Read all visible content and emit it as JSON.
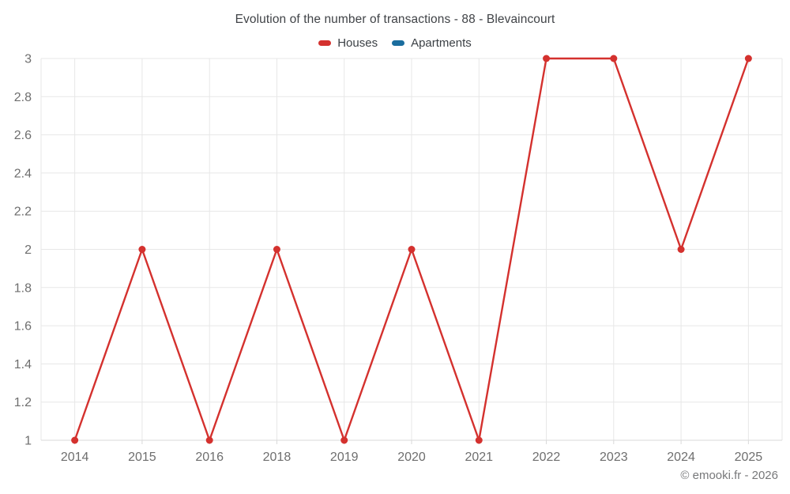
{
  "title": "Evolution of the number of transactions - 88 - Blevaincourt",
  "footer": "© emooki.fr - 2026",
  "chart_data": {
    "type": "line",
    "title": "Evolution of the number of transactions - 88 - Blevaincourt",
    "categories": [
      "2014",
      "2015",
      "2016",
      "2018",
      "2019",
      "2020",
      "2021",
      "2022",
      "2023",
      "2024",
      "2025"
    ],
    "series": [
      {
        "name": "Houses",
        "color": "#d4312e",
        "values": [
          1,
          2,
          1,
          2,
          1,
          2,
          1,
          3,
          3,
          2,
          3
        ]
      },
      {
        "name": "Apartments",
        "color": "#1a6d9e",
        "values": []
      }
    ],
    "xlabel": "",
    "ylabel": "",
    "ylim": [
      1,
      3
    ],
    "ytick_step": 0.2,
    "ytick_labels": [
      "1",
      "1.2",
      "1.4",
      "1.6",
      "1.8",
      "2",
      "2.2",
      "2.4",
      "2.6",
      "2.8",
      "3"
    ],
    "grid": true,
    "legend_position": "top",
    "marker_radius": 4.5,
    "line_width": 2.4
  },
  "colors": {
    "grid": "#e7e7e7",
    "axis_line": "#d9d9d9",
    "tick_label": "#6e6e6e",
    "title": "#404347",
    "footer": "#77787a",
    "background": "#ffffff"
  }
}
